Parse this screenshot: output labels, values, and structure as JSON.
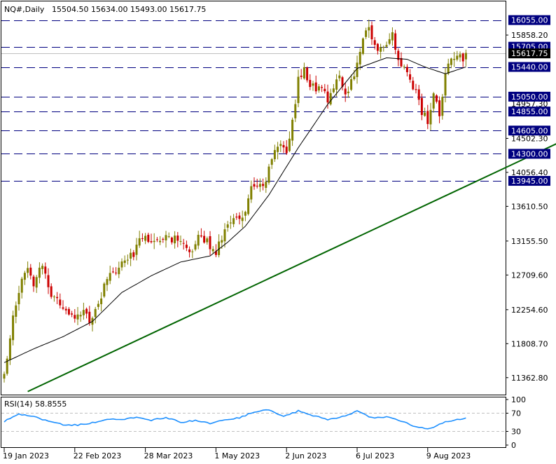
{
  "header": {
    "symbol": "NQ#,Daily",
    "ohlc": "15504.50 15634.00 15493.00 15617.75"
  },
  "rsi_label": "RSI(14) 58.8555",
  "colors": {
    "bull": "#808000",
    "bear": "#cc0000",
    "ma": "#000000",
    "trendline": "#006400",
    "level_line": "#000080",
    "level_box": "#000080",
    "rsi_line": "#1e90ff",
    "price_box": "#000000"
  },
  "chart_data": [
    {
      "type": "candlestick",
      "title": "",
      "price_axis": {
        "range": [
          11140,
          16300
        ],
        "ticks": [
          "15858.20",
          "14502.30",
          "14056.40",
          "13610.50",
          "13155.50",
          "12709.60",
          "12254.60",
          "11808.70",
          "11362.80"
        ],
        "overlap_ticks": [
          "14957.30"
        ]
      },
      "date_axis": {
        "labels": [
          "19 Jan 2023",
          "22 Feb 2023",
          "28 Mar 2023",
          "1 May 2023",
          "2 Jun 2023",
          "6 Jul 2023",
          "9 Aug 2023"
        ],
        "label_bar_index": [
          0,
          24,
          48,
          72,
          96,
          120,
          144
        ]
      },
      "levels": [
        {
          "value": 16055.0,
          "label": "16055.00"
        },
        {
          "value": 15705.0,
          "label": "15705.00"
        },
        {
          "value": 15440.0,
          "label": "15440.00"
        },
        {
          "value": 15050.0,
          "label": "15050.00"
        },
        {
          "value": 14855.0,
          "label": "14855.00"
        },
        {
          "value": 14605.0,
          "label": "14605.00"
        },
        {
          "value": 14300.0,
          "label": "14300.00"
        },
        {
          "value": 13945.0,
          "label": "13945.00"
        }
      ],
      "current_price": {
        "value": 15617.75,
        "label": "15617.75"
      },
      "trendline": {
        "from": {
          "bar": 8,
          "price": 11180
        },
        "to": {
          "bar": 233,
          "price": 15250
        }
      },
      "anchors": [
        [
          0,
          11380
        ],
        [
          3,
          12200
        ],
        [
          5,
          12500
        ],
        [
          8,
          12850
        ],
        [
          10,
          12620
        ],
        [
          13,
          12850
        ],
        [
          16,
          12450
        ],
        [
          20,
          12320
        ],
        [
          24,
          12080
        ],
        [
          27,
          12250
        ],
        [
          29,
          12100
        ],
        [
          32,
          12350
        ],
        [
          35,
          12650
        ],
        [
          38,
          12750
        ],
        [
          41,
          12880
        ],
        [
          44,
          12980
        ],
        [
          46,
          13250
        ],
        [
          49,
          13200
        ],
        [
          53,
          13100
        ],
        [
          56,
          13220
        ],
        [
          60,
          13120
        ],
        [
          63,
          12980
        ],
        [
          66,
          13210
        ],
        [
          69,
          13150
        ],
        [
          72,
          13020
        ],
        [
          75,
          13300
        ],
        [
          78,
          13420
        ],
        [
          81,
          13450
        ],
        [
          84,
          13850
        ],
        [
          86,
          13920
        ],
        [
          88,
          13820
        ],
        [
          90,
          14100
        ],
        [
          92,
          14360
        ],
        [
          94,
          14450
        ],
        [
          96,
          14320
        ],
        [
          98,
          14710
        ],
        [
          100,
          15280
        ],
        [
          102,
          15380
        ],
        [
          104,
          15230
        ],
        [
          106,
          15150
        ],
        [
          108,
          15220
        ],
        [
          110,
          14920
        ],
        [
          112,
          15200
        ],
        [
          114,
          15330
        ],
        [
          116,
          15080
        ],
        [
          118,
          15250
        ],
        [
          120,
          15500
        ],
        [
          122,
          15780
        ],
        [
          124,
          16000
        ],
        [
          126,
          15700
        ],
        [
          128,
          15680
        ],
        [
          130,
          15780
        ],
        [
          132,
          15850
        ],
        [
          134,
          15520
        ],
        [
          136,
          15410
        ],
        [
          138,
          15260
        ],
        [
          140,
          15120
        ],
        [
          142,
          14860
        ],
        [
          144,
          14720
        ],
        [
          146,
          15100
        ],
        [
          148,
          14800
        ],
        [
          150,
          15300
        ],
        [
          152,
          15550
        ],
        [
          154,
          15620
        ],
        [
          156,
          15480
        ],
        [
          157,
          15600
        ]
      ],
      "ma_anchors": [
        [
          0,
          11560
        ],
        [
          10,
          11740
        ],
        [
          20,
          11900
        ],
        [
          30,
          12100
        ],
        [
          40,
          12480
        ],
        [
          50,
          12700
        ],
        [
          60,
          12880
        ],
        [
          70,
          12960
        ],
        [
          76,
          13140
        ],
        [
          82,
          13350
        ],
        [
          90,
          13760
        ],
        [
          100,
          14380
        ],
        [
          110,
          14950
        ],
        [
          120,
          15420
        ],
        [
          130,
          15560
        ],
        [
          137,
          15540
        ],
        [
          143,
          15440
        ],
        [
          150,
          15350
        ],
        [
          157,
          15440
        ]
      ]
    },
    {
      "type": "line",
      "title": "RSI(14)",
      "value": 58.8555,
      "y_ticks": [
        "100",
        "70",
        "30",
        "0"
      ],
      "y_range": [
        0,
        100
      ],
      "levels": [
        70,
        30
      ],
      "anchors": [
        [
          0,
          52
        ],
        [
          5,
          68
        ],
        [
          10,
          62
        ],
        [
          15,
          53
        ],
        [
          20,
          45
        ],
        [
          25,
          44
        ],
        [
          30,
          49
        ],
        [
          35,
          58
        ],
        [
          40,
          57
        ],
        [
          45,
          60
        ],
        [
          50,
          54
        ],
        [
          55,
          61
        ],
        [
          60,
          50
        ],
        [
          65,
          54
        ],
        [
          70,
          47
        ],
        [
          75,
          55
        ],
        [
          80,
          60
        ],
        [
          85,
          73
        ],
        [
          90,
          77
        ],
        [
          95,
          62
        ],
        [
          100,
          75
        ],
        [
          105,
          65
        ],
        [
          110,
          56
        ],
        [
          115,
          63
        ],
        [
          120,
          74
        ],
        [
          125,
          60
        ],
        [
          130,
          62
        ],
        [
          135,
          52
        ],
        [
          140,
          40
        ],
        [
          145,
          36
        ],
        [
          150,
          52
        ],
        [
          155,
          57
        ],
        [
          157,
          59
        ]
      ]
    }
  ]
}
